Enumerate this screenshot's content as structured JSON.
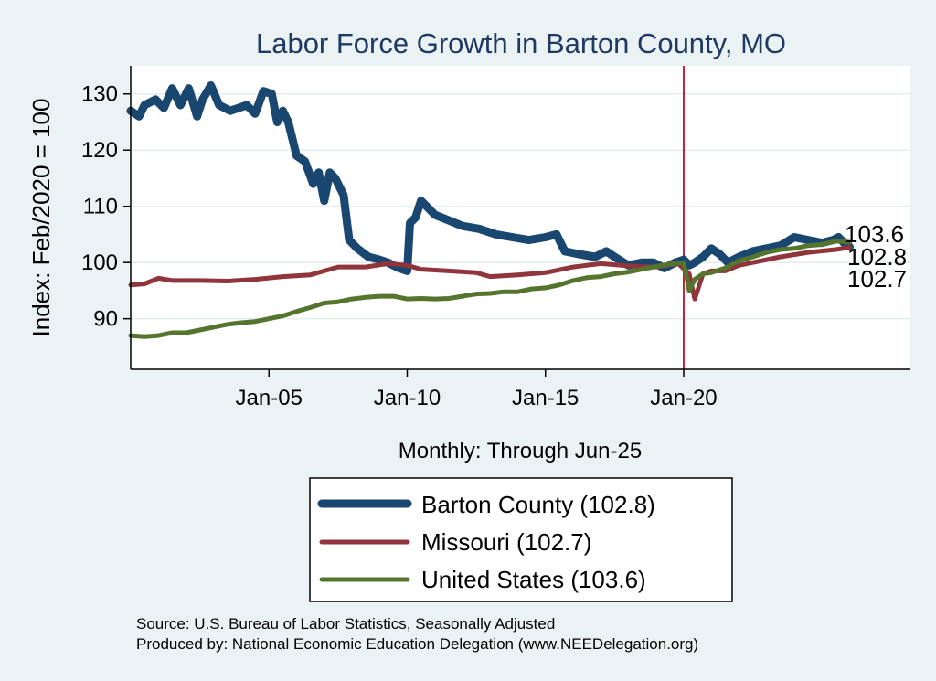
{
  "chart_data": {
    "type": "line",
    "title": "Labor Force Growth in Barton  County, MO",
    "ylabel": "Index: Feb/2020 = 100",
    "xnote": "Monthly: Through Jun-25",
    "ylim": [
      81,
      135
    ],
    "yticks": [
      90,
      100,
      110,
      120,
      130
    ],
    "xlim": [
      2000.0,
      2028.2
    ],
    "xticks": [
      {
        "label": "Jan-05",
        "value": 2005.0
      },
      {
        "label": "Jan-10",
        "value": 2010.0
      },
      {
        "label": "Jan-15",
        "value": 2015.0
      },
      {
        "label": "Jan-20",
        "value": 2020.0
      }
    ],
    "vline": 2020.0,
    "grid": true,
    "legend_position": "bottom",
    "end_labels": [
      "103.6",
      "102.8",
      "102.7"
    ],
    "series": [
      {
        "name": "Barton  County (102.8)",
        "color": "#1a476f",
        "width": 9,
        "points": [
          [
            2000.0,
            127
          ],
          [
            2000.3,
            126
          ],
          [
            2000.5,
            128
          ],
          [
            2000.9,
            129
          ],
          [
            2001.2,
            127.5
          ],
          [
            2001.5,
            131
          ],
          [
            2001.8,
            128
          ],
          [
            2002.1,
            131
          ],
          [
            2002.4,
            126
          ],
          [
            2002.6,
            129
          ],
          [
            2002.9,
            131.5
          ],
          [
            2003.2,
            128
          ],
          [
            2003.6,
            127
          ],
          [
            2003.9,
            127.5
          ],
          [
            2004.2,
            128
          ],
          [
            2004.5,
            126.5
          ],
          [
            2004.8,
            130.5
          ],
          [
            2005.1,
            130
          ],
          [
            2005.3,
            125
          ],
          [
            2005.5,
            127
          ],
          [
            2005.7,
            125
          ],
          [
            2006.0,
            119
          ],
          [
            2006.3,
            118
          ],
          [
            2006.6,
            114
          ],
          [
            2006.8,
            116
          ],
          [
            2007.0,
            111
          ],
          [
            2007.2,
            116
          ],
          [
            2007.4,
            115
          ],
          [
            2007.7,
            112
          ],
          [
            2007.9,
            104
          ],
          [
            2008.2,
            102.5
          ],
          [
            2008.6,
            101
          ],
          [
            2009.0,
            100.5
          ],
          [
            2009.3,
            100
          ],
          [
            2009.7,
            99
          ],
          [
            2010.0,
            98.5
          ],
          [
            2010.1,
            107
          ],
          [
            2010.3,
            108
          ],
          [
            2010.5,
            111
          ],
          [
            2010.7,
            110
          ],
          [
            2011.0,
            108.5
          ],
          [
            2011.5,
            107.5
          ],
          [
            2012.0,
            106.5
          ],
          [
            2012.6,
            106
          ],
          [
            2013.2,
            105
          ],
          [
            2013.8,
            104.5
          ],
          [
            2014.4,
            104
          ],
          [
            2015.0,
            104.5
          ],
          [
            2015.4,
            105
          ],
          [
            2015.7,
            102
          ],
          [
            2016.2,
            101.5
          ],
          [
            2016.8,
            101
          ],
          [
            2017.2,
            102
          ],
          [
            2017.5,
            101
          ],
          [
            2018.0,
            99.5
          ],
          [
            2018.5,
            100
          ],
          [
            2018.9,
            100
          ],
          [
            2019.3,
            99
          ],
          [
            2019.7,
            100
          ],
          [
            2020.0,
            100.5
          ],
          [
            2020.2,
            99.5
          ],
          [
            2020.4,
            100
          ],
          [
            2020.7,
            101
          ],
          [
            2021.0,
            102.5
          ],
          [
            2021.3,
            101.5
          ],
          [
            2021.6,
            100
          ],
          [
            2022.0,
            101
          ],
          [
            2022.5,
            102
          ],
          [
            2023.0,
            102.5
          ],
          [
            2023.5,
            103
          ],
          [
            2024.0,
            104.5
          ],
          [
            2024.5,
            104
          ],
          [
            2025.0,
            103.5
          ],
          [
            2025.4,
            104
          ],
          [
            2025.6,
            104.5
          ],
          [
            2025.8,
            103.5
          ],
          [
            2026.0,
            102.8
          ]
        ]
      },
      {
        "name": "Missouri (102.7)",
        "color": "#90353b",
        "width": 5,
        "points": [
          [
            2000.0,
            96
          ],
          [
            2000.5,
            96.2
          ],
          [
            2001.0,
            97.2
          ],
          [
            2001.5,
            96.8
          ],
          [
            2002.5,
            96.8
          ],
          [
            2003.5,
            96.7
          ],
          [
            2004.5,
            97
          ],
          [
            2005.5,
            97.5
          ],
          [
            2006.5,
            97.8
          ],
          [
            2007.0,
            98.5
          ],
          [
            2007.5,
            99.2
          ],
          [
            2008.5,
            99.2
          ],
          [
            2009.3,
            99.8
          ],
          [
            2010.0,
            99.5
          ],
          [
            2010.5,
            98.8
          ],
          [
            2011.5,
            98.5
          ],
          [
            2012.5,
            98.2
          ],
          [
            2013.0,
            97.5
          ],
          [
            2014.0,
            97.8
          ],
          [
            2015.0,
            98.2
          ],
          [
            2016.0,
            99.2
          ],
          [
            2017.0,
            99.8
          ],
          [
            2018.0,
            99.4
          ],
          [
            2019.0,
            99.2
          ],
          [
            2019.8,
            99.8
          ],
          [
            2020.2,
            98
          ],
          [
            2020.4,
            93.5
          ],
          [
            2020.7,
            98
          ],
          [
            2021.0,
            98.5
          ],
          [
            2021.5,
            98.5
          ],
          [
            2022.0,
            99.5
          ],
          [
            2022.5,
            100
          ],
          [
            2023.5,
            101
          ],
          [
            2024.5,
            101.8
          ],
          [
            2025.5,
            102.3
          ],
          [
            2026.0,
            102.7
          ]
        ]
      },
      {
        "name": "United States (103.6)",
        "color": "#55752f",
        "width": 5,
        "points": [
          [
            2000.0,
            87
          ],
          [
            2000.5,
            86.8
          ],
          [
            2001.0,
            87
          ],
          [
            2001.5,
            87.5
          ],
          [
            2002.0,
            87.5
          ],
          [
            2002.5,
            88
          ],
          [
            2003.0,
            88.5
          ],
          [
            2003.5,
            89
          ],
          [
            2004.0,
            89.3
          ],
          [
            2004.5,
            89.5
          ],
          [
            2005.0,
            90
          ],
          [
            2005.5,
            90.5
          ],
          [
            2006.0,
            91.3
          ],
          [
            2006.5,
            92
          ],
          [
            2007.0,
            92.8
          ],
          [
            2007.5,
            93
          ],
          [
            2008.0,
            93.5
          ],
          [
            2008.5,
            93.8
          ],
          [
            2009.0,
            94
          ],
          [
            2009.5,
            94
          ],
          [
            2010.0,
            93.5
          ],
          [
            2010.5,
            93.6
          ],
          [
            2011.0,
            93.5
          ],
          [
            2011.5,
            93.6
          ],
          [
            2012.0,
            94
          ],
          [
            2012.5,
            94.4
          ],
          [
            2013.0,
            94.5
          ],
          [
            2013.5,
            94.8
          ],
          [
            2014.0,
            94.8
          ],
          [
            2014.5,
            95.3
          ],
          [
            2015.0,
            95.5
          ],
          [
            2015.5,
            96
          ],
          [
            2016.0,
            96.8
          ],
          [
            2016.5,
            97.3
          ],
          [
            2017.0,
            97.5
          ],
          [
            2017.5,
            98
          ],
          [
            2018.0,
            98.3
          ],
          [
            2018.5,
            98.8
          ],
          [
            2019.0,
            99.3
          ],
          [
            2019.5,
            99.7
          ],
          [
            2020.0,
            100
          ],
          [
            2020.2,
            95
          ],
          [
            2020.4,
            97
          ],
          [
            2020.7,
            98
          ],
          [
            2021.0,
            98.2
          ],
          [
            2021.5,
            99
          ],
          [
            2022.0,
            100.3
          ],
          [
            2022.5,
            101
          ],
          [
            2023.0,
            101.8
          ],
          [
            2023.5,
            102.3
          ],
          [
            2024.0,
            102.5
          ],
          [
            2024.5,
            103
          ],
          [
            2025.0,
            103.2
          ],
          [
            2025.5,
            103.8
          ],
          [
            2026.0,
            103.6
          ]
        ]
      }
    ]
  },
  "source_lines": [
    "Source: U.S. Bureau of Labor Statistics, Seasonally Adjusted",
    "Produced by: National Economic Education Delegation (www.NEEDelegation.org)"
  ]
}
